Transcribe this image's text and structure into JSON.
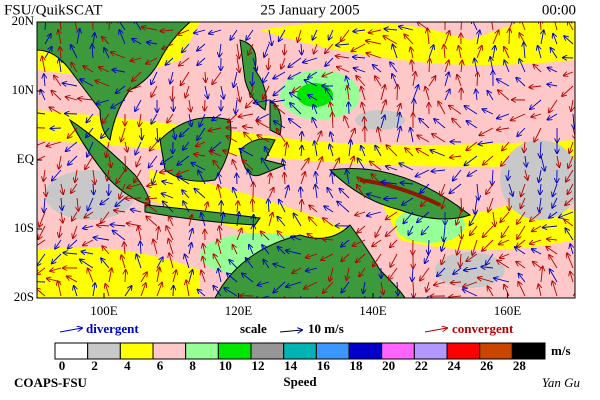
{
  "header": {
    "source": "FSU/QuikSCAT",
    "date": "25 January 2005",
    "time": "00:00"
  },
  "map": {
    "lat_labels": [
      "20N",
      "10N",
      "EQ",
      "10S",
      "20S"
    ],
    "lon_labels": [
      "100E",
      "120E",
      "140E",
      "160E"
    ]
  },
  "legend": {
    "divergent": "divergent",
    "scale": "scale",
    "scale_value": "10 m/s",
    "convergent": "convergent"
  },
  "speed_scale": {
    "ticks": [
      0,
      2,
      4,
      6,
      8,
      10,
      12,
      14,
      16,
      18,
      20,
      22,
      24,
      26,
      28
    ],
    "colors": [
      "#ffffff",
      "#c8c8c8",
      "#ffff00",
      "#ffc8c8",
      "#96ff96",
      "#00e600",
      "#969696",
      "#00b4b4",
      "#3c96ff",
      "#0000c8",
      "#ff64ff",
      "#b496ff",
      "#ff0000",
      "#c84600",
      "#000000"
    ],
    "unit": "m/s",
    "label": "Speed"
  },
  "footer": {
    "left": "COAPS-FSU",
    "right": "Yan Gu"
  }
}
